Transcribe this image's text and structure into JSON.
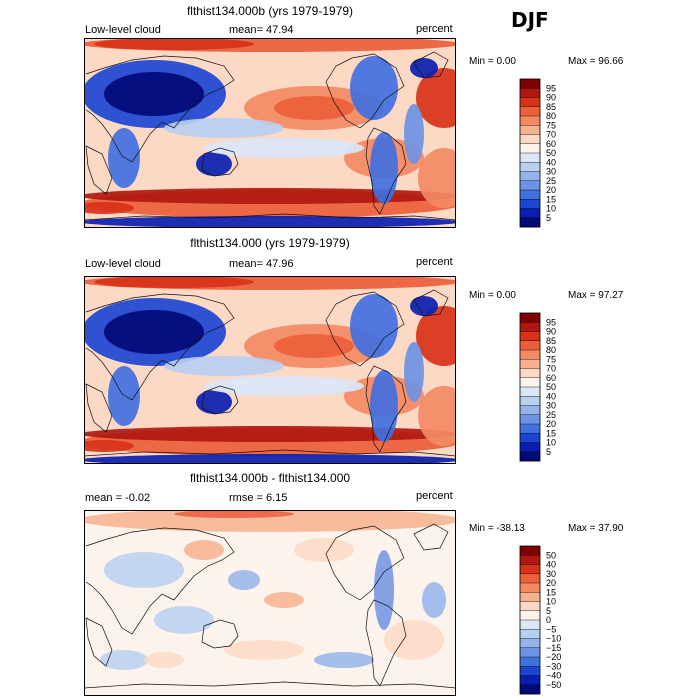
{
  "season": "DJF",
  "chart_data": [
    {
      "type": "heatmap",
      "title": "flthist134.000b (yrs 1979-1979)",
      "variable": "Low-level cloud",
      "stat_label": "mean",
      "stat_text": "mean=  47.94",
      "units": "percent",
      "min_text": "Min =    0.00",
      "max_text": "Max =  96.66",
      "min": 0.0,
      "max": 96.66,
      "mean": 47.94,
      "levels": [
        "95",
        "90",
        "85",
        "80",
        "75",
        "70",
        "60",
        "50",
        "40",
        "30",
        "25",
        "20",
        "15",
        "10",
        "5"
      ],
      "colors": [
        "#800000",
        "#b0180f",
        "#d83218",
        "#ec5f3a",
        "#f38a64",
        "#f7b18f",
        "#fbd9c4",
        "#fbf3ec",
        "#dbe6f7",
        "#b9cff0",
        "#94b3ea",
        "#6e92e4",
        "#4170df",
        "#1c46d2",
        "#0a1fb1",
        "#020a78"
      ]
    },
    {
      "type": "heatmap",
      "title": "flthist134.000 (yrs 1979-1979)",
      "variable": "Low-level cloud",
      "stat_label": "mean",
      "stat_text": "mean=  47.96",
      "units": "percent",
      "min_text": "Min =    0.00",
      "max_text": "Max =  97.27",
      "min": 0.0,
      "max": 97.27,
      "mean": 47.96,
      "levels": [
        "95",
        "90",
        "85",
        "80",
        "75",
        "70",
        "60",
        "50",
        "40",
        "30",
        "25",
        "20",
        "15",
        "10",
        "5"
      ],
      "colors": [
        "#800000",
        "#b0180f",
        "#d83218",
        "#ec5f3a",
        "#f38a64",
        "#f7b18f",
        "#fbd9c4",
        "#fbf3ec",
        "#dbe6f7",
        "#b9cff0",
        "#94b3ea",
        "#6e92e4",
        "#4170df",
        "#1c46d2",
        "#0a1fb1",
        "#020a78"
      ]
    },
    {
      "type": "heatmap",
      "title": "flthist134.000b - flthist134.000",
      "stat_text": "mean =   -0.02",
      "rmse_text": "rmse =    6.15",
      "units": "percent",
      "min_text": "Min = -38.13",
      "max_text": "Max =  37.90",
      "min": -38.13,
      "max": 37.9,
      "mean": -0.02,
      "rmse": 6.15,
      "levels": [
        "50",
        "40",
        "30",
        "20",
        "15",
        "10",
        "5",
        "0",
        "−5",
        "−10",
        "−15",
        "−20",
        "−30",
        "−40",
        "−50"
      ],
      "colors": [
        "#800000",
        "#b0180f",
        "#d83218",
        "#ec5f3a",
        "#f38a64",
        "#f7b18f",
        "#fbd9c4",
        "#fbf3ec",
        "#dbe6f7",
        "#b9cff0",
        "#94b3ea",
        "#6e92e4",
        "#4170df",
        "#1c46d2",
        "#0a1fb1",
        "#020a78"
      ]
    }
  ]
}
